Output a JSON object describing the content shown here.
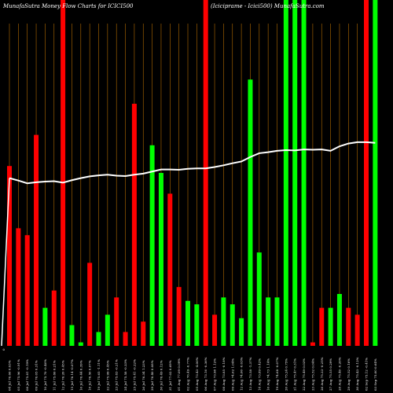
{
  "chart_data": {
    "type": "bar",
    "title_left": "MunafaSutra  Money Flow  Charts for ICICI500",
    "title_right": "(Iciciprame -   Icici500) MunafaSutra.com",
    "zero_label": "0",
    "colors": {
      "up": "#00ff00",
      "down": "#ff0000",
      "line": "#ffffff",
      "grid": "#b36b00",
      "background": "#000000"
    },
    "ylim": [
      0,
      100
    ],
    "categories": [
      "04 Jul 76.66 0.03%",
      "05 Jul 75.96 -0.91%",
      "08 Jul 75.81 -0.19%",
      "09 Jul 76.05 0.31%",
      "10 Jul 75.70 -0.46%",
      "11 Jul 75.86 0.21%",
      "12 Jul 76.20 0.45%",
      "15 Jul 76.14 -0.07%",
      "16 Jul 76.44 0.39%",
      "18 Jul 76.50 0.07%",
      "19 Jul 75.65 -1.11%",
      "22 Jul 75.99 0.45%",
      "23 Jul 75.83 -0.21%",
      "24 Jul 75.58 -0.33%",
      "25 Jul 75.41 -0.22%",
      "26 Jul 76.34 1.23%",
      "29 Jul 76.40 0.08%",
      "30 Jul 76.49 0.12%",
      "31 Jul 77.02 0.69%",
      "01 Aug 77.09 0.09%",
      "02 Aug 76.49 -0.77%",
      "05 Aug 73.43 -4.00%",
      "06 Aug 73.16 -0.36%",
      "07 Aug 73.98 1.12%",
      "08 Aug 73.85 -0.18%",
      "09 Aug 74.62 1.04%",
      "12 Aug 74.60 -0.03%",
      "13 Aug 73.58 -1.37%",
      "14 Aug 73.89 0.42%",
      "16 Aug 74.73 1.14%",
      "19 Aug 74.68 -0.07%",
      "20 Aug 75.24 0.75%",
      "21 Aug 75.47 0.31%",
      "22 Aug 75.49 0.03%",
      "23 Aug 75.52 0.04%",
      "26 Aug 75.33 -0.25%",
      "27 Aug 75.55 0.29%",
      "28 Aug 75.40 -0.20%",
      "29 Aug 75.52 0.16%",
      "30 Aug 75.43 -0.12%",
      "02 Sep 75.12 -0.41%",
      "03 Sep 75.60 0.64%"
    ],
    "values": [
      52,
      34,
      32,
      61,
      11,
      16,
      100,
      6,
      1,
      24,
      4,
      9,
      14,
      4,
      70,
      7,
      58,
      50,
      44,
      17,
      13,
      12,
      100,
      9,
      14,
      12,
      8,
      77,
      27,
      14,
      14,
      100,
      100,
      100,
      1,
      11,
      11,
      15,
      11,
      9,
      100,
      100
    ],
    "directions": [
      "down",
      "down",
      "down",
      "down",
      "up",
      "down",
      "down",
      "up",
      "up",
      "down",
      "up",
      "up",
      "down",
      "down",
      "down",
      "down",
      "up",
      "up",
      "down",
      "down",
      "up",
      "up",
      "down",
      "down",
      "up",
      "up",
      "up",
      "up",
      "up",
      "up",
      "up",
      "up",
      "up",
      "up",
      "down",
      "down",
      "up",
      "up",
      "down",
      "down",
      "down",
      "up"
    ],
    "line_values": [
      48.5,
      47.8,
      47,
      47.3,
      47.5,
      47.6,
      47.2,
      47.9,
      48.5,
      49.0,
      49.3,
      49.5,
      49.2,
      49.1,
      49.5,
      49.8,
      50.4,
      51.0,
      51.0,
      50.9,
      51.2,
      51.3,
      51.3,
      51.7,
      52.2,
      52.8,
      53.3,
      54.6,
      55.7,
      56.0,
      56.4,
      56.6,
      56.5,
      56.8,
      56.7,
      56.8,
      56.4,
      57.7,
      58.5,
      58.9,
      58.9,
      58.7
    ]
  }
}
